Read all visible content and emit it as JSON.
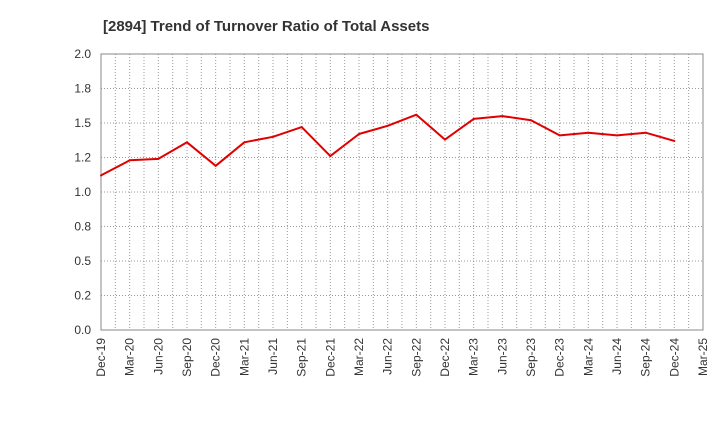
{
  "chart_data": {
    "type": "line",
    "title": "[2894]  Trend of Turnover Ratio of Total Assets",
    "xlabel": "",
    "ylabel": "",
    "ylim": [
      0,
      2.0
    ],
    "yticks": [
      "0.0",
      "0.2",
      "0.5",
      "0.8",
      "1.0",
      "1.2",
      "1.5",
      "1.8",
      "2.0"
    ],
    "ytick_values": [
      0,
      0.25,
      0.5,
      0.75,
      1.0,
      1.25,
      1.5,
      1.75,
      2.0
    ],
    "categories": [
      "Dec-19",
      "Mar-20",
      "Jun-20",
      "Sep-20",
      "Dec-20",
      "Mar-21",
      "Jun-21",
      "Sep-21",
      "Dec-21",
      "Mar-22",
      "Jun-22",
      "Sep-22",
      "Dec-22",
      "Mar-23",
      "Jun-23",
      "Sep-23",
      "Dec-23",
      "Mar-24",
      "Jun-24",
      "Sep-24",
      "Dec-24",
      "Mar-25"
    ],
    "series": [
      {
        "name": "",
        "color": "#e00000",
        "values": [
          1.12,
          1.23,
          1.24,
          1.36,
          1.19,
          1.36,
          1.4,
          1.47,
          1.26,
          1.42,
          1.48,
          1.56,
          1.38,
          1.53,
          1.55,
          1.52,
          1.41,
          1.43,
          1.41,
          1.43,
          1.37,
          null
        ]
      }
    ],
    "grid": true,
    "grid_style": "dotted",
    "legend": false
  }
}
